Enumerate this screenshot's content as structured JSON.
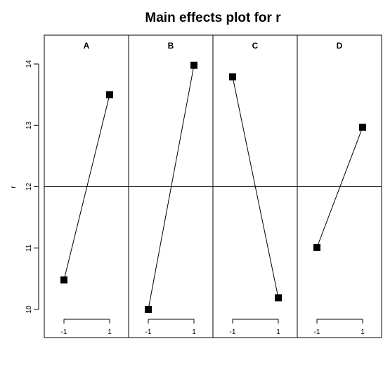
{
  "chart_data": {
    "type": "line",
    "title": "Main effects plot for r",
    "ylabel": "r",
    "xlabel": "",
    "ylim": [
      9.7,
      14.5
    ],
    "yticks": [
      "10",
      "11",
      "12",
      "13",
      "14"
    ],
    "grand_mean": 12.0,
    "levels": [
      "-1",
      "1"
    ],
    "panels": [
      {
        "name": "A",
        "values": [
          10.48,
          13.5
        ]
      },
      {
        "name": "B",
        "values": [
          10.0,
          13.98
        ]
      },
      {
        "name": "C",
        "values": [
          13.79,
          10.19
        ]
      },
      {
        "name": "D",
        "values": [
          11.01,
          12.97
        ]
      }
    ]
  }
}
